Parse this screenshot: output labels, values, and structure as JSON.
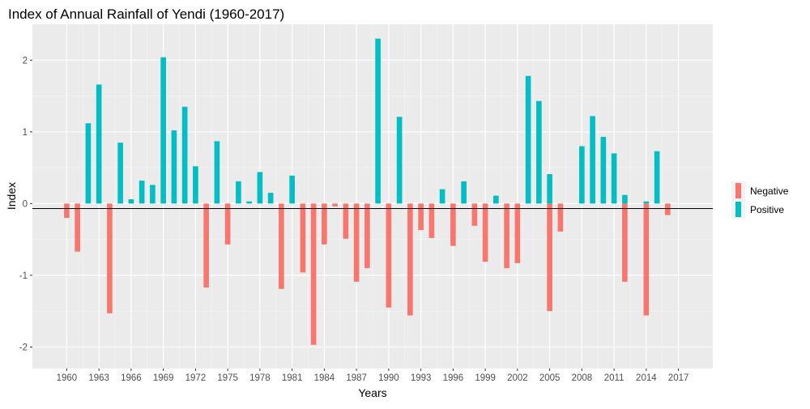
{
  "chart_data": {
    "type": "bar",
    "title": "Index of Annual Rainfall of Yendi (1960-2017)",
    "xlabel": "Years",
    "ylabel": "Index",
    "ylim": [
      -2.3,
      2.5
    ],
    "xlim": [
      1956.8,
      2020.2
    ],
    "grid": true,
    "legend_position": "right",
    "x_ticks": [
      1960,
      1963,
      1966,
      1969,
      1972,
      1975,
      1978,
      1981,
      1984,
      1987,
      1990,
      1993,
      1996,
      1999,
      2002,
      2005,
      2008,
      2011,
      2014,
      2017
    ],
    "y_ticks": [
      -2,
      -1,
      0,
      1,
      2
    ],
    "series": [
      {
        "name": "Negative",
        "color": "#F8766D",
        "points": [
          {
            "x": 1960,
            "y": -0.2
          },
          {
            "x": 1961,
            "y": -0.67
          },
          {
            "x": 1964,
            "y": -1.53
          },
          {
            "x": 1973,
            "y": -1.17
          },
          {
            "x": 1975,
            "y": -0.57
          },
          {
            "x": 1980,
            "y": -1.19
          },
          {
            "x": 1982,
            "y": -0.96
          },
          {
            "x": 1983,
            "y": -1.97
          },
          {
            "x": 1984,
            "y": -0.57
          },
          {
            "x": 1985,
            "y": -0.04
          },
          {
            "x": 1986,
            "y": -0.49
          },
          {
            "x": 1987,
            "y": -1.09
          },
          {
            "x": 1988,
            "y": -0.9
          },
          {
            "x": 1990,
            "y": -1.45
          },
          {
            "x": 1992,
            "y": -1.56
          },
          {
            "x": 1993,
            "y": -0.37
          },
          {
            "x": 1994,
            "y": -0.48
          },
          {
            "x": 1996,
            "y": -0.59
          },
          {
            "x": 1998,
            "y": -0.31
          },
          {
            "x": 1999,
            "y": -0.81
          },
          {
            "x": 2001,
            "y": -0.9
          },
          {
            "x": 2002,
            "y": -0.83
          },
          {
            "x": 2005,
            "y": -1.5
          },
          {
            "x": 2006,
            "y": -0.39
          },
          {
            "x": 2012,
            "y": -1.09
          },
          {
            "x": 2014,
            "y": -1.56
          },
          {
            "x": 2016,
            "y": -0.16
          }
        ]
      },
      {
        "name": "Positive",
        "color": "#00BFC4",
        "points": [
          {
            "x": 1962,
            "y": 1.12
          },
          {
            "x": 1963,
            "y": 1.66
          },
          {
            "x": 1965,
            "y": 0.85
          },
          {
            "x": 1966,
            "y": 0.06
          },
          {
            "x": 1967,
            "y": 0.32
          },
          {
            "x": 1968,
            "y": 0.26
          },
          {
            "x": 1969,
            "y": 2.04
          },
          {
            "x": 1970,
            "y": 1.02
          },
          {
            "x": 1971,
            "y": 1.35
          },
          {
            "x": 1972,
            "y": 0.52
          },
          {
            "x": 1974,
            "y": 0.87
          },
          {
            "x": 1976,
            "y": 0.31
          },
          {
            "x": 1977,
            "y": 0.03
          },
          {
            "x": 1978,
            "y": 0.44
          },
          {
            "x": 1979,
            "y": 0.15
          },
          {
            "x": 1981,
            "y": 0.39
          },
          {
            "x": 1989,
            "y": 2.3
          },
          {
            "x": 1991,
            "y": 1.21
          },
          {
            "x": 1995,
            "y": 0.2
          },
          {
            "x": 1997,
            "y": 0.31
          },
          {
            "x": 2000,
            "y": 0.11
          },
          {
            "x": 2003,
            "y": 1.78
          },
          {
            "x": 2004,
            "y": 1.43
          },
          {
            "x": 2005,
            "y": 0.41
          },
          {
            "x": 2008,
            "y": 0.8
          },
          {
            "x": 2009,
            "y": 1.22
          },
          {
            "x": 2010,
            "y": 0.93
          },
          {
            "x": 2011,
            "y": 0.7
          },
          {
            "x": 2012,
            "y": 0.12
          },
          {
            "x": 2014,
            "y": 0.03
          },
          {
            "x": 2015,
            "y": 0.73
          }
        ]
      }
    ]
  }
}
